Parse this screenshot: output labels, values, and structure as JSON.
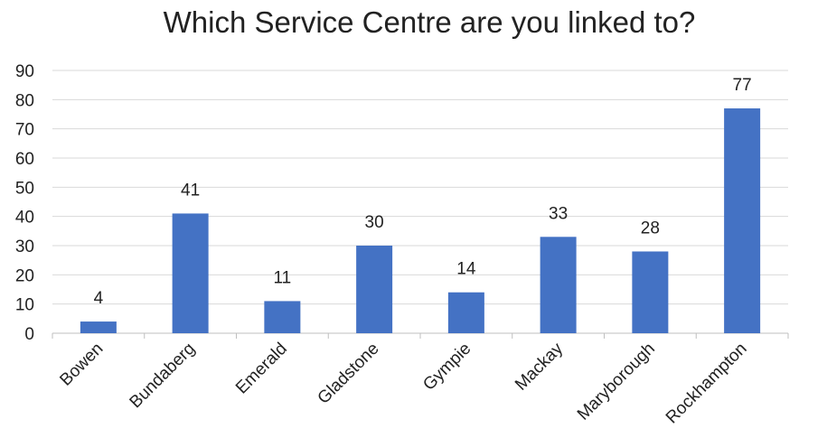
{
  "chart_data": {
    "type": "bar",
    "title": "Which Service Centre are you linked to?",
    "xlabel": "",
    "ylabel": "",
    "categories": [
      "Bowen",
      "Bundaberg",
      "Emerald",
      "Gladstone",
      "Gympie",
      "Mackay",
      "Maryborough",
      "Rockhampton"
    ],
    "values": [
      4,
      41,
      11,
      30,
      14,
      33,
      28,
      77
    ],
    "ylim": [
      0,
      90
    ],
    "yticks": [
      "0",
      "10",
      "20",
      "30",
      "40",
      "50",
      "60",
      "70",
      "80",
      "90"
    ],
    "grid": true,
    "legend": "none",
    "bar_color": "#4472C4",
    "grid_color": "#D9D9D9",
    "axis_color": "#BFBFBF"
  }
}
